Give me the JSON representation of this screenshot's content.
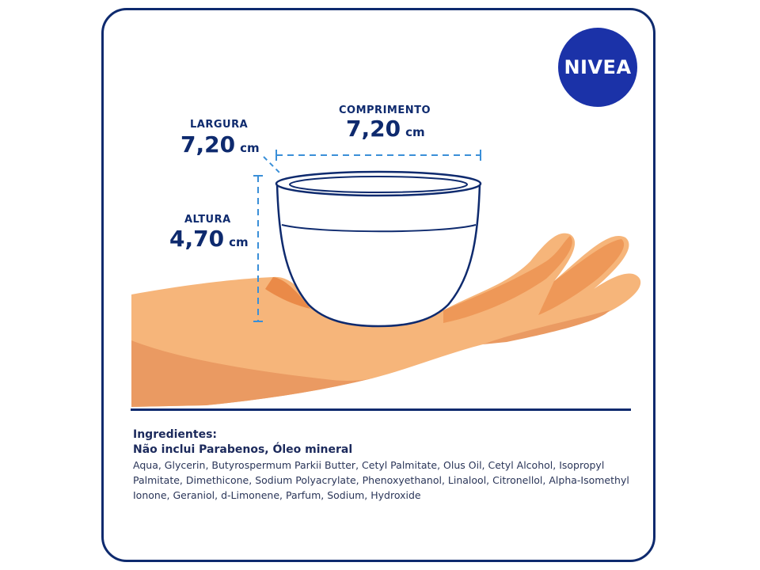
{
  "brand": {
    "logo_text": "NIVEA",
    "color": "#1b32a8"
  },
  "dimensions": {
    "width": {
      "label": "LARGURA",
      "value": "7,20",
      "unit": "cm"
    },
    "length": {
      "label": "COMPRIMENTO",
      "value": "7,20",
      "unit": "cm"
    },
    "height": {
      "label": "ALTURA",
      "value": "4,70",
      "unit": "cm"
    }
  },
  "ingredients": {
    "title": "Ingredientes:",
    "subtitle": "Não inclui Parabenos, Óleo mineral",
    "text": "Aqua, Glycerin, Butyrospermum Parkii Butter, Cetyl Palmitate, Olus Oil, Cetyl Alcohol, Isopropyl Palmitate, Dimethicone, Sodium Polyacrylate, Phenoxyethanol, Linalool, Citronellol, Alpha-Isomethyl Ionone, Geraniol, d-Limonene, Parfum, Sodium, Hydroxide"
  },
  "colors": {
    "navy": "#0e2a6e",
    "hand_light": "#f6b57a",
    "hand_dark": "#e9915a",
    "guide": "#3a8fd8"
  }
}
